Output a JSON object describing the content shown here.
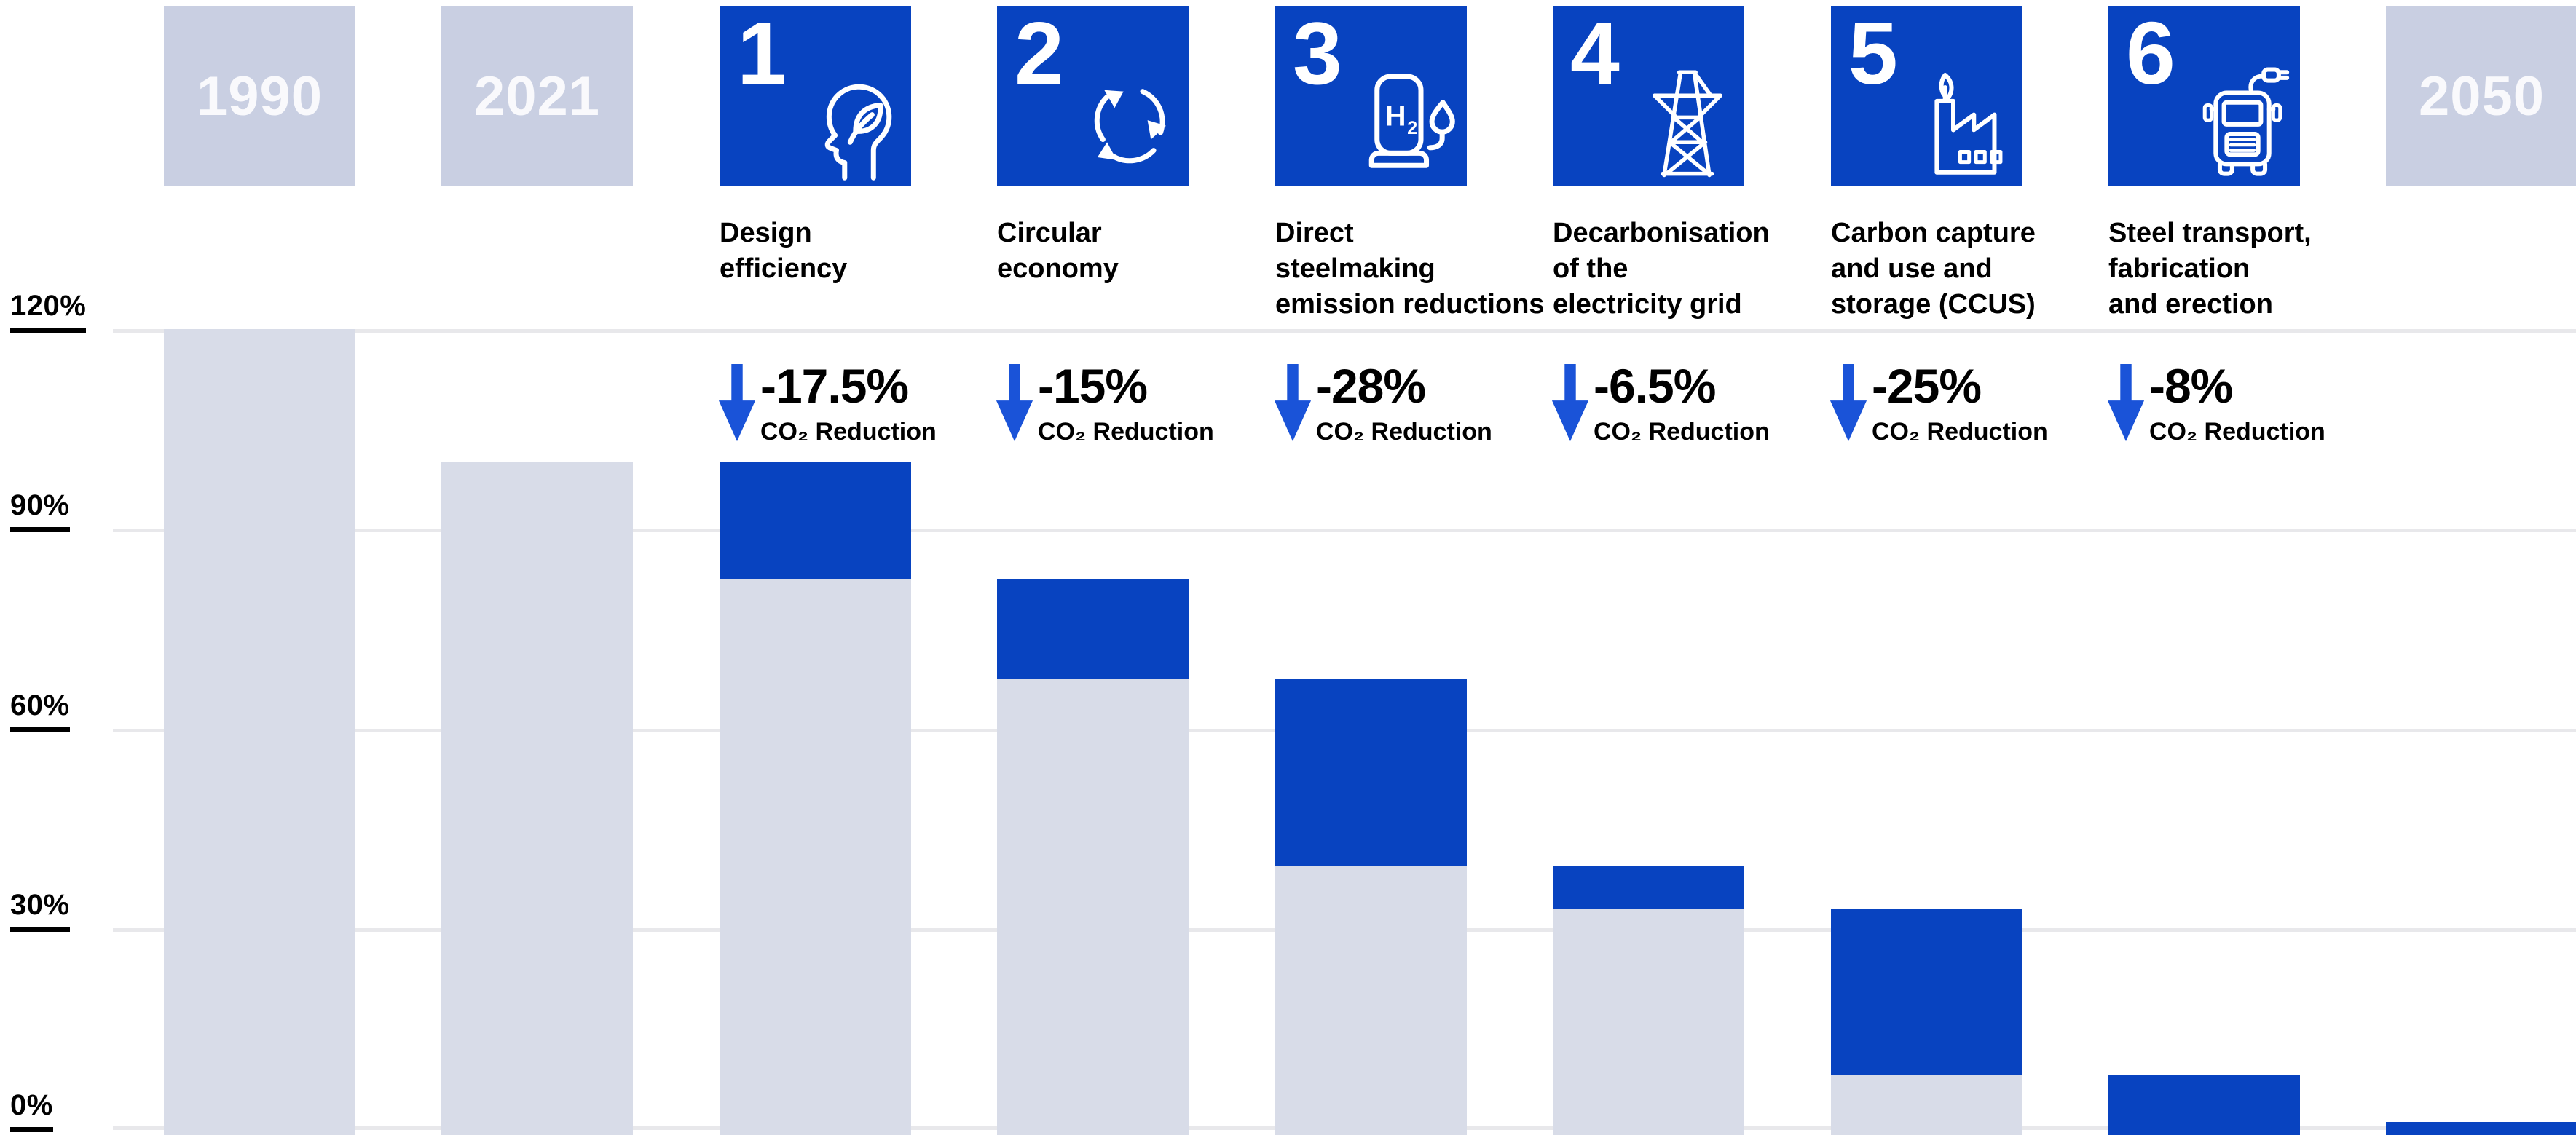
{
  "palette": {
    "step_blue": "#0843C0",
    "arrow_blue": "#1A53D8",
    "bar_gray": "#D8DCE8",
    "header_lavender": "#C9CFE2",
    "gridline": "#E8E8EB",
    "text": "#000000",
    "year_text": "#FFFFFF"
  },
  "chart_data": {
    "type": "bar",
    "subtype": "waterfall",
    "title": "",
    "ylabel": "",
    "ylim": [
      0,
      120
    ],
    "yticks": [
      "120%",
      "90%",
      "60%",
      "30%",
      "0%"
    ],
    "grid": true,
    "columns": [
      {
        "kind": "year",
        "label": "1990",
        "gray_top": 120,
        "blue": null
      },
      {
        "kind": "year",
        "label": "2021",
        "gray_top": 100,
        "blue": null
      },
      {
        "kind": "step",
        "number": "1",
        "icon": "head-leaf-icon",
        "label_lines": [
          "Design",
          "efficiency",
          ""
        ],
        "reduction": "-17.5%",
        "reduction_sub": "CO₂ Reduction",
        "gray_top": 82.5,
        "blue": [
          82.5,
          100
        ]
      },
      {
        "kind": "step",
        "number": "2",
        "icon": "recycle-icon",
        "label_lines": [
          "Circular",
          "economy",
          ""
        ],
        "reduction": "-15%",
        "reduction_sub": "CO₂ Reduction",
        "gray_top": 67.5,
        "blue": [
          67.5,
          82.5
        ]
      },
      {
        "kind": "step",
        "number": "3",
        "icon": "hydrogen-pump-icon",
        "label_lines": [
          "Direct",
          "steelmaking",
          "emission reductions"
        ],
        "reduction": "-28%",
        "reduction_sub": "CO₂ Reduction",
        "gray_top": 39.5,
        "blue": [
          39.5,
          67.5
        ]
      },
      {
        "kind": "step",
        "number": "4",
        "icon": "electricity-pylon-icon",
        "label_lines": [
          "Decarbonisation",
          "of the",
          "electricity grid"
        ],
        "reduction": "-6.5%",
        "reduction_sub": "CO₂ Reduction",
        "gray_top": 33,
        "blue": [
          33,
          39.5
        ]
      },
      {
        "kind": "step",
        "number": "5",
        "icon": "ccus-factory-icon",
        "label_lines": [
          "Carbon capture",
          "and use and",
          "storage (CCUS)"
        ],
        "reduction": "-25%",
        "reduction_sub": "CO₂ Reduction",
        "gray_top": 8,
        "blue": [
          8,
          33
        ]
      },
      {
        "kind": "step",
        "number": "6",
        "icon": "electric-truck-icon",
        "label_lines": [
          "Steel transport,",
          "fabrication",
          "and erection"
        ],
        "reduction": "-8%",
        "reduction_sub": "CO₂ Reduction",
        "gray_top": 0,
        "blue": [
          0,
          8
        ]
      },
      {
        "kind": "year",
        "label": "2050",
        "gray_top": 0,
        "blue": [
          0,
          1
        ]
      }
    ]
  }
}
